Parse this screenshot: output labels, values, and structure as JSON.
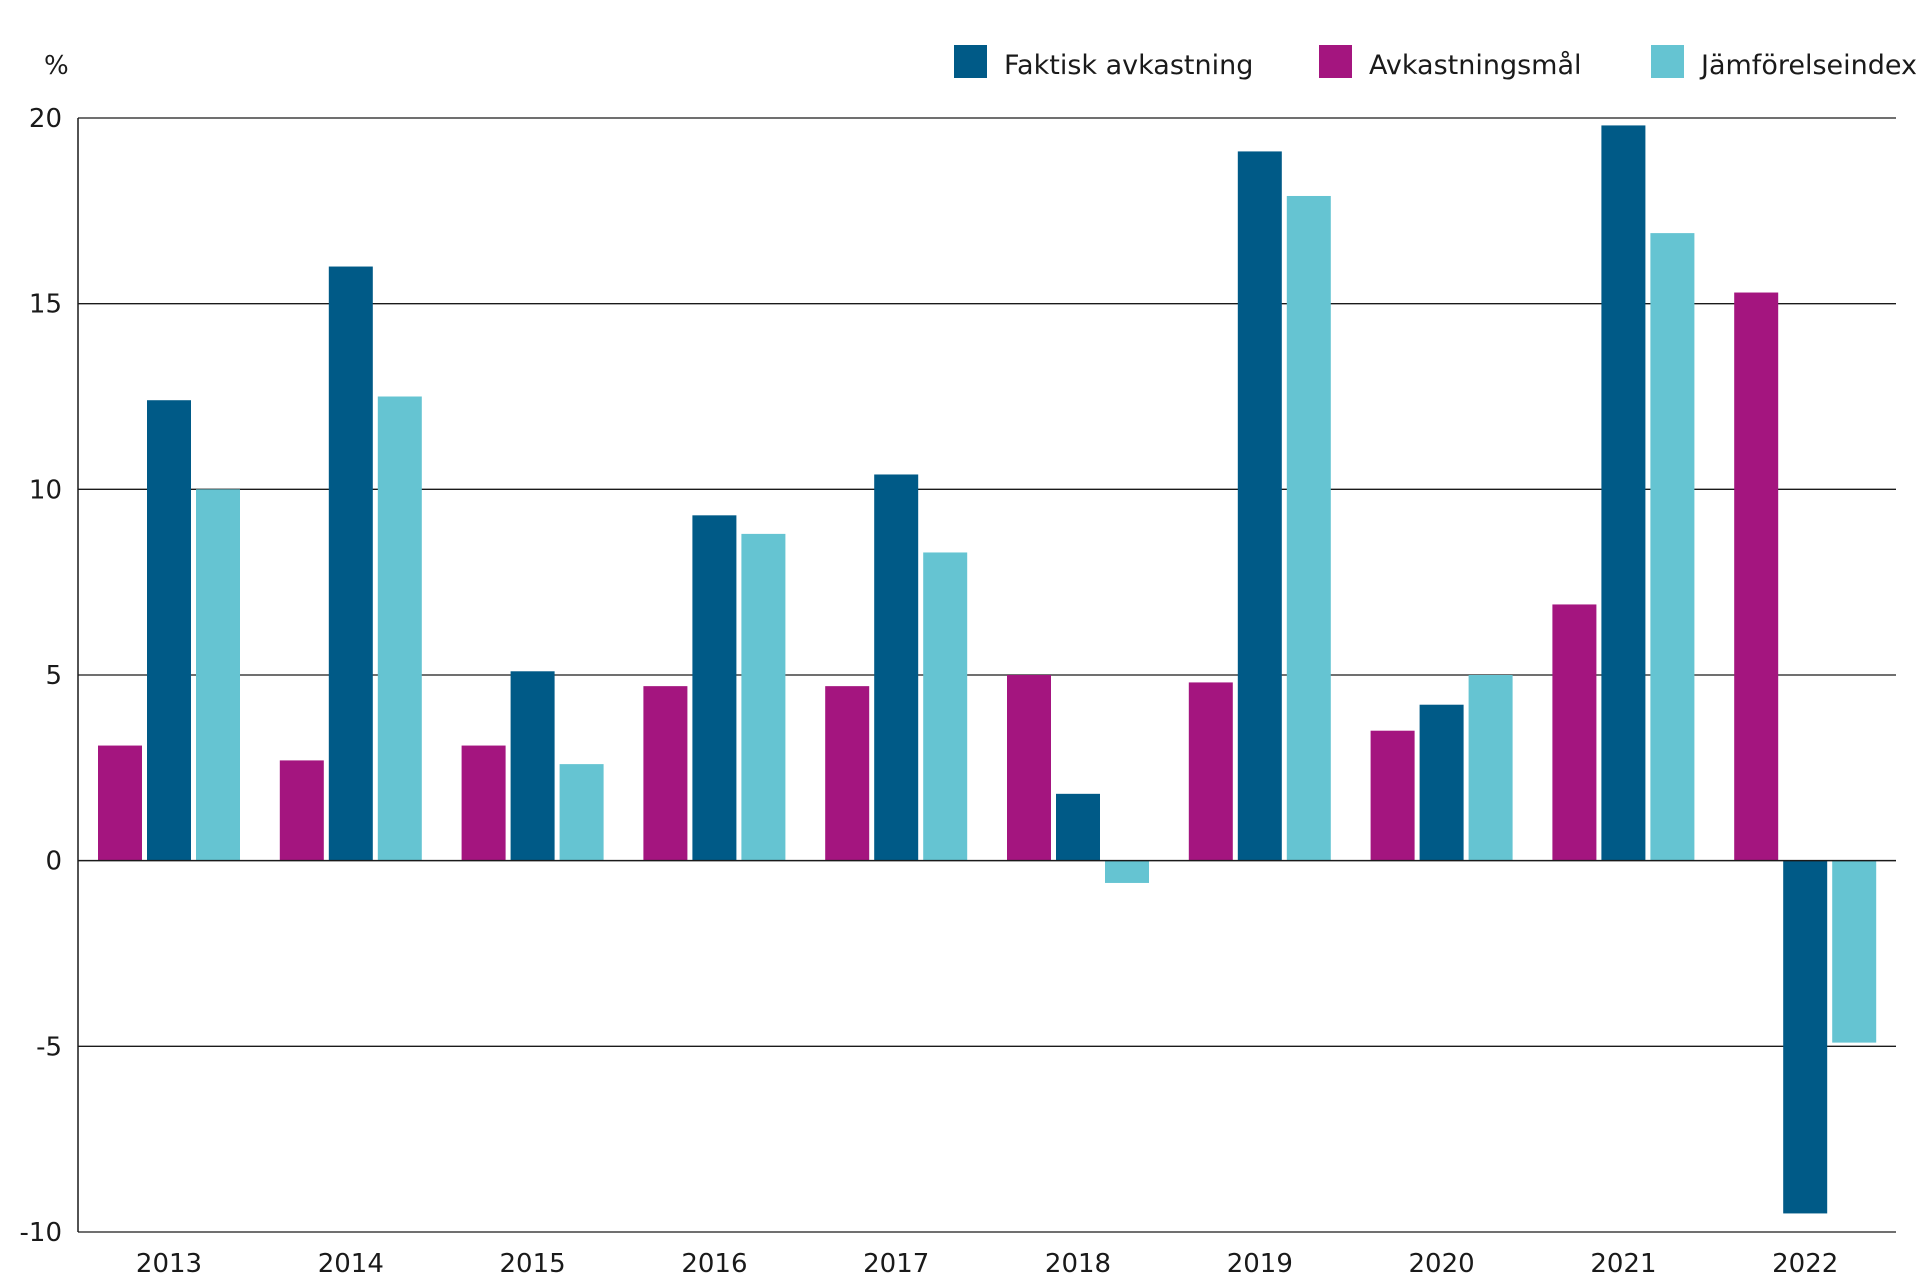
{
  "chart_data": {
    "type": "bar",
    "ylabel": "%",
    "ylim": [
      -10,
      20
    ],
    "yticks": [
      20,
      15,
      10,
      5,
      0,
      -5,
      -10
    ],
    "grid": true,
    "legend_position": "top-right",
    "categories": [
      "2013",
      "2014",
      "2015",
      "2016",
      "2017",
      "2018",
      "2019",
      "2020",
      "2021",
      "2022"
    ],
    "series": [
      {
        "name": "Avkastningsmål",
        "color": "#a4157f",
        "values": [
          3.1,
          2.7,
          3.1,
          4.7,
          4.7,
          5.0,
          4.8,
          3.5,
          6.9,
          15.3
        ]
      },
      {
        "name": "Faktisk avkastning",
        "color": "#005a87",
        "values": [
          12.4,
          16.0,
          5.1,
          9.3,
          10.4,
          1.8,
          19.1,
          4.2,
          19.8,
          -9.5
        ]
      },
      {
        "name": "Jämförelseindex",
        "color": "#65c4d2",
        "values": [
          10.0,
          12.5,
          2.6,
          8.8,
          8.3,
          -0.6,
          17.9,
          5.0,
          16.9,
          -4.9
        ]
      }
    ],
    "legend_order": [
      "Faktisk avkastning",
      "Avkastningsmål",
      "Jämförelseindex"
    ]
  }
}
